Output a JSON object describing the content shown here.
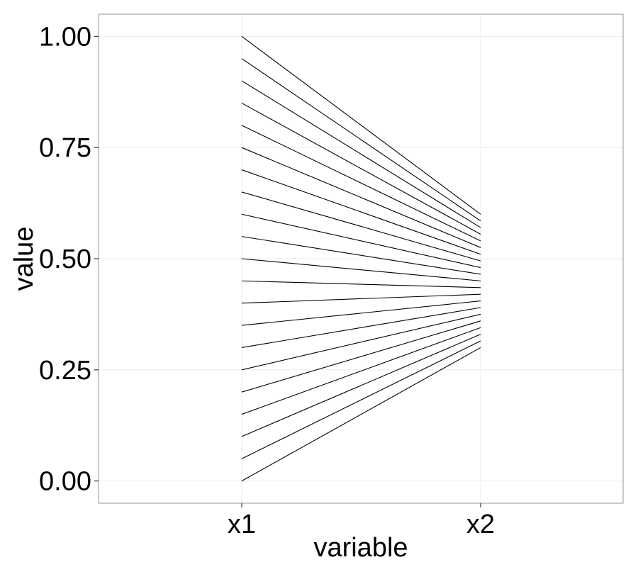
{
  "chart_data": {
    "type": "line",
    "title": "",
    "xlabel": "variable",
    "ylabel": "value",
    "categories": [
      "x1",
      "x2"
    ],
    "ylim": [
      -0.05,
      1.05
    ],
    "yticks": [
      0.0,
      0.25,
      0.5,
      0.75,
      1.0
    ],
    "ytick_labels": [
      "0.00",
      "0.25",
      "0.50",
      "0.75",
      "1.00"
    ],
    "grid": true,
    "legend": "none",
    "line_color": "#000000",
    "grid_color": "#ebebeb",
    "panel_border_color": "#a6a6a6",
    "series": [
      {
        "values": [
          0.0,
          0.3
        ]
      },
      {
        "values": [
          0.05,
          0.315
        ]
      },
      {
        "values": [
          0.1,
          0.33
        ]
      },
      {
        "values": [
          0.15,
          0.345
        ]
      },
      {
        "values": [
          0.2,
          0.36
        ]
      },
      {
        "values": [
          0.25,
          0.375
        ]
      },
      {
        "values": [
          0.3,
          0.39
        ]
      },
      {
        "values": [
          0.35,
          0.405
        ]
      },
      {
        "values": [
          0.4,
          0.42
        ]
      },
      {
        "values": [
          0.45,
          0.435
        ]
      },
      {
        "values": [
          0.5,
          0.45
        ]
      },
      {
        "values": [
          0.55,
          0.465
        ]
      },
      {
        "values": [
          0.6,
          0.48
        ]
      },
      {
        "values": [
          0.65,
          0.495
        ]
      },
      {
        "values": [
          0.7,
          0.51
        ]
      },
      {
        "values": [
          0.75,
          0.525
        ]
      },
      {
        "values": [
          0.8,
          0.54
        ]
      },
      {
        "values": [
          0.85,
          0.555
        ]
      },
      {
        "values": [
          0.9,
          0.57
        ]
      },
      {
        "values": [
          0.95,
          0.585
        ]
      },
      {
        "values": [
          1.0,
          0.6
        ]
      }
    ]
  }
}
